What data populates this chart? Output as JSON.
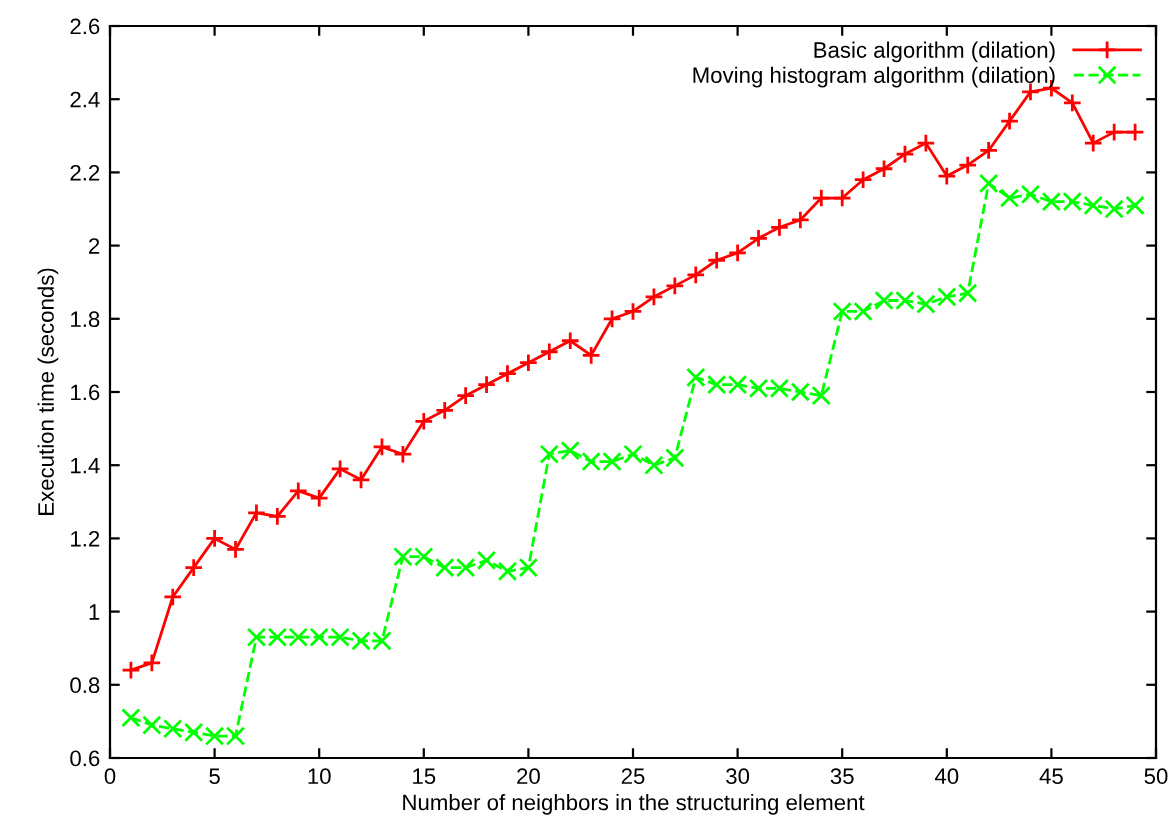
{
  "chart_data": {
    "type": "line",
    "xlabel": "Number of neighbors in the structuring element",
    "ylabel": "Execution time (seconds)",
    "x": [
      1,
      2,
      3,
      4,
      5,
      6,
      7,
      8,
      9,
      10,
      11,
      12,
      13,
      14,
      15,
      16,
      17,
      18,
      19,
      20,
      21,
      22,
      23,
      24,
      25,
      26,
      27,
      28,
      29,
      30,
      31,
      32,
      33,
      34,
      35,
      36,
      37,
      38,
      39,
      40,
      41,
      42,
      43,
      44,
      45,
      46,
      47,
      48,
      49
    ],
    "series": [
      {
        "name": "Basic algorithm (dilation)",
        "color": "#ff0000",
        "marker": "plus",
        "line_style": "solid",
        "values": [
          0.84,
          0.86,
          1.04,
          1.12,
          1.2,
          1.17,
          1.27,
          1.26,
          1.33,
          1.31,
          1.39,
          1.36,
          1.45,
          1.43,
          1.52,
          1.55,
          1.59,
          1.62,
          1.65,
          1.68,
          1.71,
          1.74,
          1.7,
          1.8,
          1.82,
          1.86,
          1.89,
          1.92,
          1.96,
          1.98,
          2.02,
          2.05,
          2.07,
          2.13,
          2.13,
          2.18,
          2.21,
          2.25,
          2.28,
          2.19,
          2.22,
          2.26,
          2.34,
          2.42,
          2.43,
          2.39,
          2.28,
          2.31,
          2.31
        ]
      },
      {
        "name": "Moving histogram algorithm (dilation)",
        "color": "#00ff00",
        "marker": "cross",
        "line_style": "dashed",
        "values": [
          0.71,
          0.69,
          0.68,
          0.67,
          0.66,
          0.66,
          0.93,
          0.93,
          0.93,
          0.93,
          0.93,
          0.92,
          0.92,
          1.15,
          1.15,
          1.12,
          1.12,
          1.14,
          1.11,
          1.12,
          1.43,
          1.44,
          1.41,
          1.41,
          1.43,
          1.4,
          1.42,
          1.64,
          1.62,
          1.62,
          1.61,
          1.61,
          1.6,
          1.59,
          1.82,
          1.82,
          1.85,
          1.85,
          1.84,
          1.86,
          1.87,
          2.17,
          2.13,
          2.14,
          2.12,
          2.12,
          2.11,
          2.1,
          2.11
        ]
      }
    ],
    "xlim": [
      0,
      50
    ],
    "xticks": [
      0,
      5,
      10,
      15,
      20,
      25,
      30,
      35,
      40,
      45,
      50
    ],
    "ylim": [
      0.6,
      2.6
    ],
    "yticks": [
      0.6,
      0.8,
      1,
      1.2,
      1.4,
      1.6,
      1.8,
      2,
      2.2,
      2.4,
      2.6
    ],
    "grid": false,
    "legend": "top right"
  }
}
